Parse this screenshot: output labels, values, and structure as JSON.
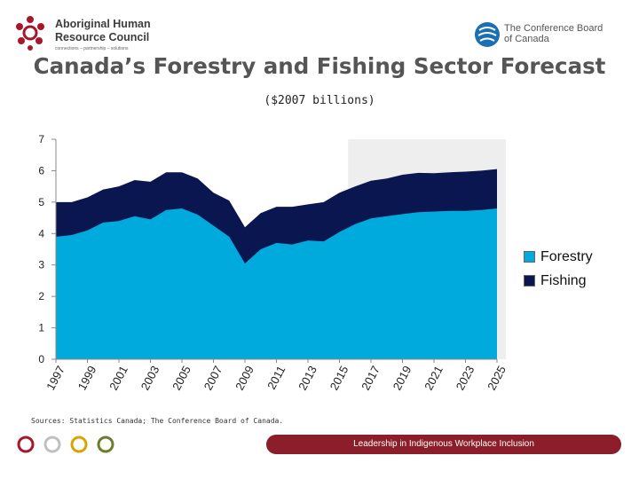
{
  "header": {
    "left_org_line1": "Aboriginal Human",
    "left_org_line2": "Resource Council",
    "left_tagline": "connections – partnership – solutions",
    "right_org_line1": "The Conference Board",
    "right_org_line2": "of Canada"
  },
  "footer": {
    "source": "Sources: Statistics Canada; The Conference Board of Canada.",
    "banner": "Leadership in Indigenous Workplace Inclusion",
    "circle_colors": [
      "#a7172b",
      "#c0c0c0",
      "#d9a300",
      "#6b7d2a"
    ]
  },
  "colors": {
    "forestry": "#00aadd",
    "fishing": "#0a1650",
    "forecast_shade": "#eeeeee"
  },
  "chart_data": {
    "type": "area",
    "title": "Canada’s Forestry and Fishing Sector Forecast",
    "subtitle": "($2007 billions)",
    "xlabel": "",
    "ylabel": "",
    "stacked": true,
    "ylim": [
      0,
      7
    ],
    "yticks": [
      0,
      1,
      2,
      3,
      4,
      5,
      6,
      7
    ],
    "x": [
      1997,
      1998,
      1999,
      2000,
      2001,
      2002,
      2003,
      2004,
      2005,
      2006,
      2007,
      2008,
      2009,
      2010,
      2011,
      2012,
      2013,
      2014,
      2015,
      2016,
      2017,
      2018,
      2019,
      2020,
      2021,
      2022,
      2023,
      2024,
      2025
    ],
    "xtick_labels": [
      "1997",
      "1999",
      "2001",
      "2003",
      "2005",
      "2007",
      "2009",
      "2011",
      "2013",
      "2015",
      "2017",
      "2019",
      "2021",
      "2023",
      "2025"
    ],
    "forecast_start": 2016,
    "grid": false,
    "legend_position": "right",
    "series": [
      {
        "name": "Forestry",
        "values": [
          3.9,
          3.95,
          4.1,
          4.35,
          4.4,
          4.55,
          4.45,
          4.75,
          4.8,
          4.6,
          4.25,
          3.9,
          3.05,
          3.5,
          3.7,
          3.65,
          3.78,
          3.75,
          4.05,
          4.3,
          4.48,
          4.55,
          4.62,
          4.68,
          4.7,
          4.72,
          4.72,
          4.75,
          4.8
        ]
      },
      {
        "name": "Fishing",
        "values": [
          1.1,
          1.05,
          1.05,
          1.05,
          1.1,
          1.15,
          1.2,
          1.2,
          1.15,
          1.15,
          1.05,
          1.15,
          1.15,
          1.15,
          1.15,
          1.2,
          1.15,
          1.25,
          1.25,
          1.2,
          1.2,
          1.2,
          1.25,
          1.25,
          1.22,
          1.23,
          1.25,
          1.25,
          1.25
        ]
      }
    ]
  }
}
